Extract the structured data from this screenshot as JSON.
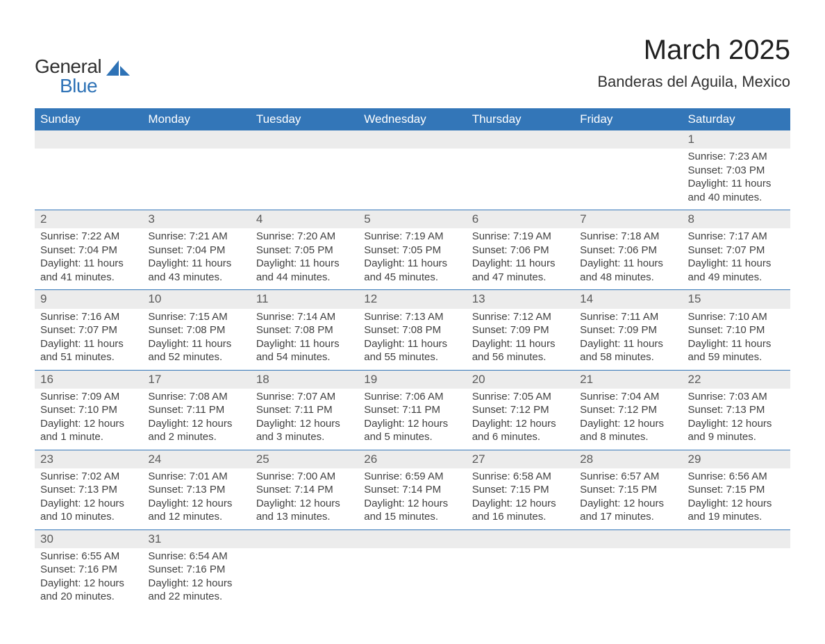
{
  "logo": {
    "text1": "General",
    "text2": "Blue",
    "shape_color": "#2e72b6"
  },
  "title": "March 2025",
  "location": "Banderas del Aguila, Mexico",
  "colors": {
    "header_bg": "#3376b8",
    "header_text": "#ffffff",
    "daynum_bg": "#ececec",
    "row_border": "#3376b8",
    "body_text": "#404040"
  },
  "day_headers": [
    "Sunday",
    "Monday",
    "Tuesday",
    "Wednesday",
    "Thursday",
    "Friday",
    "Saturday"
  ],
  "weeks": [
    [
      null,
      null,
      null,
      null,
      null,
      null,
      {
        "n": "1",
        "sr": "Sunrise: 7:23 AM",
        "ss": "Sunset: 7:03 PM",
        "d1": "Daylight: 11 hours",
        "d2": "and 40 minutes."
      }
    ],
    [
      {
        "n": "2",
        "sr": "Sunrise: 7:22 AM",
        "ss": "Sunset: 7:04 PM",
        "d1": "Daylight: 11 hours",
        "d2": "and 41 minutes."
      },
      {
        "n": "3",
        "sr": "Sunrise: 7:21 AM",
        "ss": "Sunset: 7:04 PM",
        "d1": "Daylight: 11 hours",
        "d2": "and 43 minutes."
      },
      {
        "n": "4",
        "sr": "Sunrise: 7:20 AM",
        "ss": "Sunset: 7:05 PM",
        "d1": "Daylight: 11 hours",
        "d2": "and 44 minutes."
      },
      {
        "n": "5",
        "sr": "Sunrise: 7:19 AM",
        "ss": "Sunset: 7:05 PM",
        "d1": "Daylight: 11 hours",
        "d2": "and 45 minutes."
      },
      {
        "n": "6",
        "sr": "Sunrise: 7:19 AM",
        "ss": "Sunset: 7:06 PM",
        "d1": "Daylight: 11 hours",
        "d2": "and 47 minutes."
      },
      {
        "n": "7",
        "sr": "Sunrise: 7:18 AM",
        "ss": "Sunset: 7:06 PM",
        "d1": "Daylight: 11 hours",
        "d2": "and 48 minutes."
      },
      {
        "n": "8",
        "sr": "Sunrise: 7:17 AM",
        "ss": "Sunset: 7:07 PM",
        "d1": "Daylight: 11 hours",
        "d2": "and 49 minutes."
      }
    ],
    [
      {
        "n": "9",
        "sr": "Sunrise: 7:16 AM",
        "ss": "Sunset: 7:07 PM",
        "d1": "Daylight: 11 hours",
        "d2": "and 51 minutes."
      },
      {
        "n": "10",
        "sr": "Sunrise: 7:15 AM",
        "ss": "Sunset: 7:08 PM",
        "d1": "Daylight: 11 hours",
        "d2": "and 52 minutes."
      },
      {
        "n": "11",
        "sr": "Sunrise: 7:14 AM",
        "ss": "Sunset: 7:08 PM",
        "d1": "Daylight: 11 hours",
        "d2": "and 54 minutes."
      },
      {
        "n": "12",
        "sr": "Sunrise: 7:13 AM",
        "ss": "Sunset: 7:08 PM",
        "d1": "Daylight: 11 hours",
        "d2": "and 55 minutes."
      },
      {
        "n": "13",
        "sr": "Sunrise: 7:12 AM",
        "ss": "Sunset: 7:09 PM",
        "d1": "Daylight: 11 hours",
        "d2": "and 56 minutes."
      },
      {
        "n": "14",
        "sr": "Sunrise: 7:11 AM",
        "ss": "Sunset: 7:09 PM",
        "d1": "Daylight: 11 hours",
        "d2": "and 58 minutes."
      },
      {
        "n": "15",
        "sr": "Sunrise: 7:10 AM",
        "ss": "Sunset: 7:10 PM",
        "d1": "Daylight: 11 hours",
        "d2": "and 59 minutes."
      }
    ],
    [
      {
        "n": "16",
        "sr": "Sunrise: 7:09 AM",
        "ss": "Sunset: 7:10 PM",
        "d1": "Daylight: 12 hours",
        "d2": "and 1 minute."
      },
      {
        "n": "17",
        "sr": "Sunrise: 7:08 AM",
        "ss": "Sunset: 7:11 PM",
        "d1": "Daylight: 12 hours",
        "d2": "and 2 minutes."
      },
      {
        "n": "18",
        "sr": "Sunrise: 7:07 AM",
        "ss": "Sunset: 7:11 PM",
        "d1": "Daylight: 12 hours",
        "d2": "and 3 minutes."
      },
      {
        "n": "19",
        "sr": "Sunrise: 7:06 AM",
        "ss": "Sunset: 7:11 PM",
        "d1": "Daylight: 12 hours",
        "d2": "and 5 minutes."
      },
      {
        "n": "20",
        "sr": "Sunrise: 7:05 AM",
        "ss": "Sunset: 7:12 PM",
        "d1": "Daylight: 12 hours",
        "d2": "and 6 minutes."
      },
      {
        "n": "21",
        "sr": "Sunrise: 7:04 AM",
        "ss": "Sunset: 7:12 PM",
        "d1": "Daylight: 12 hours",
        "d2": "and 8 minutes."
      },
      {
        "n": "22",
        "sr": "Sunrise: 7:03 AM",
        "ss": "Sunset: 7:13 PM",
        "d1": "Daylight: 12 hours",
        "d2": "and 9 minutes."
      }
    ],
    [
      {
        "n": "23",
        "sr": "Sunrise: 7:02 AM",
        "ss": "Sunset: 7:13 PM",
        "d1": "Daylight: 12 hours",
        "d2": "and 10 minutes."
      },
      {
        "n": "24",
        "sr": "Sunrise: 7:01 AM",
        "ss": "Sunset: 7:13 PM",
        "d1": "Daylight: 12 hours",
        "d2": "and 12 minutes."
      },
      {
        "n": "25",
        "sr": "Sunrise: 7:00 AM",
        "ss": "Sunset: 7:14 PM",
        "d1": "Daylight: 12 hours",
        "d2": "and 13 minutes."
      },
      {
        "n": "26",
        "sr": "Sunrise: 6:59 AM",
        "ss": "Sunset: 7:14 PM",
        "d1": "Daylight: 12 hours",
        "d2": "and 15 minutes."
      },
      {
        "n": "27",
        "sr": "Sunrise: 6:58 AM",
        "ss": "Sunset: 7:15 PM",
        "d1": "Daylight: 12 hours",
        "d2": "and 16 minutes."
      },
      {
        "n": "28",
        "sr": "Sunrise: 6:57 AM",
        "ss": "Sunset: 7:15 PM",
        "d1": "Daylight: 12 hours",
        "d2": "and 17 minutes."
      },
      {
        "n": "29",
        "sr": "Sunrise: 6:56 AM",
        "ss": "Sunset: 7:15 PM",
        "d1": "Daylight: 12 hours",
        "d2": "and 19 minutes."
      }
    ],
    [
      {
        "n": "30",
        "sr": "Sunrise: 6:55 AM",
        "ss": "Sunset: 7:16 PM",
        "d1": "Daylight: 12 hours",
        "d2": "and 20 minutes."
      },
      {
        "n": "31",
        "sr": "Sunrise: 6:54 AM",
        "ss": "Sunset: 7:16 PM",
        "d1": "Daylight: 12 hours",
        "d2": "and 22 minutes."
      },
      null,
      null,
      null,
      null,
      null
    ]
  ]
}
